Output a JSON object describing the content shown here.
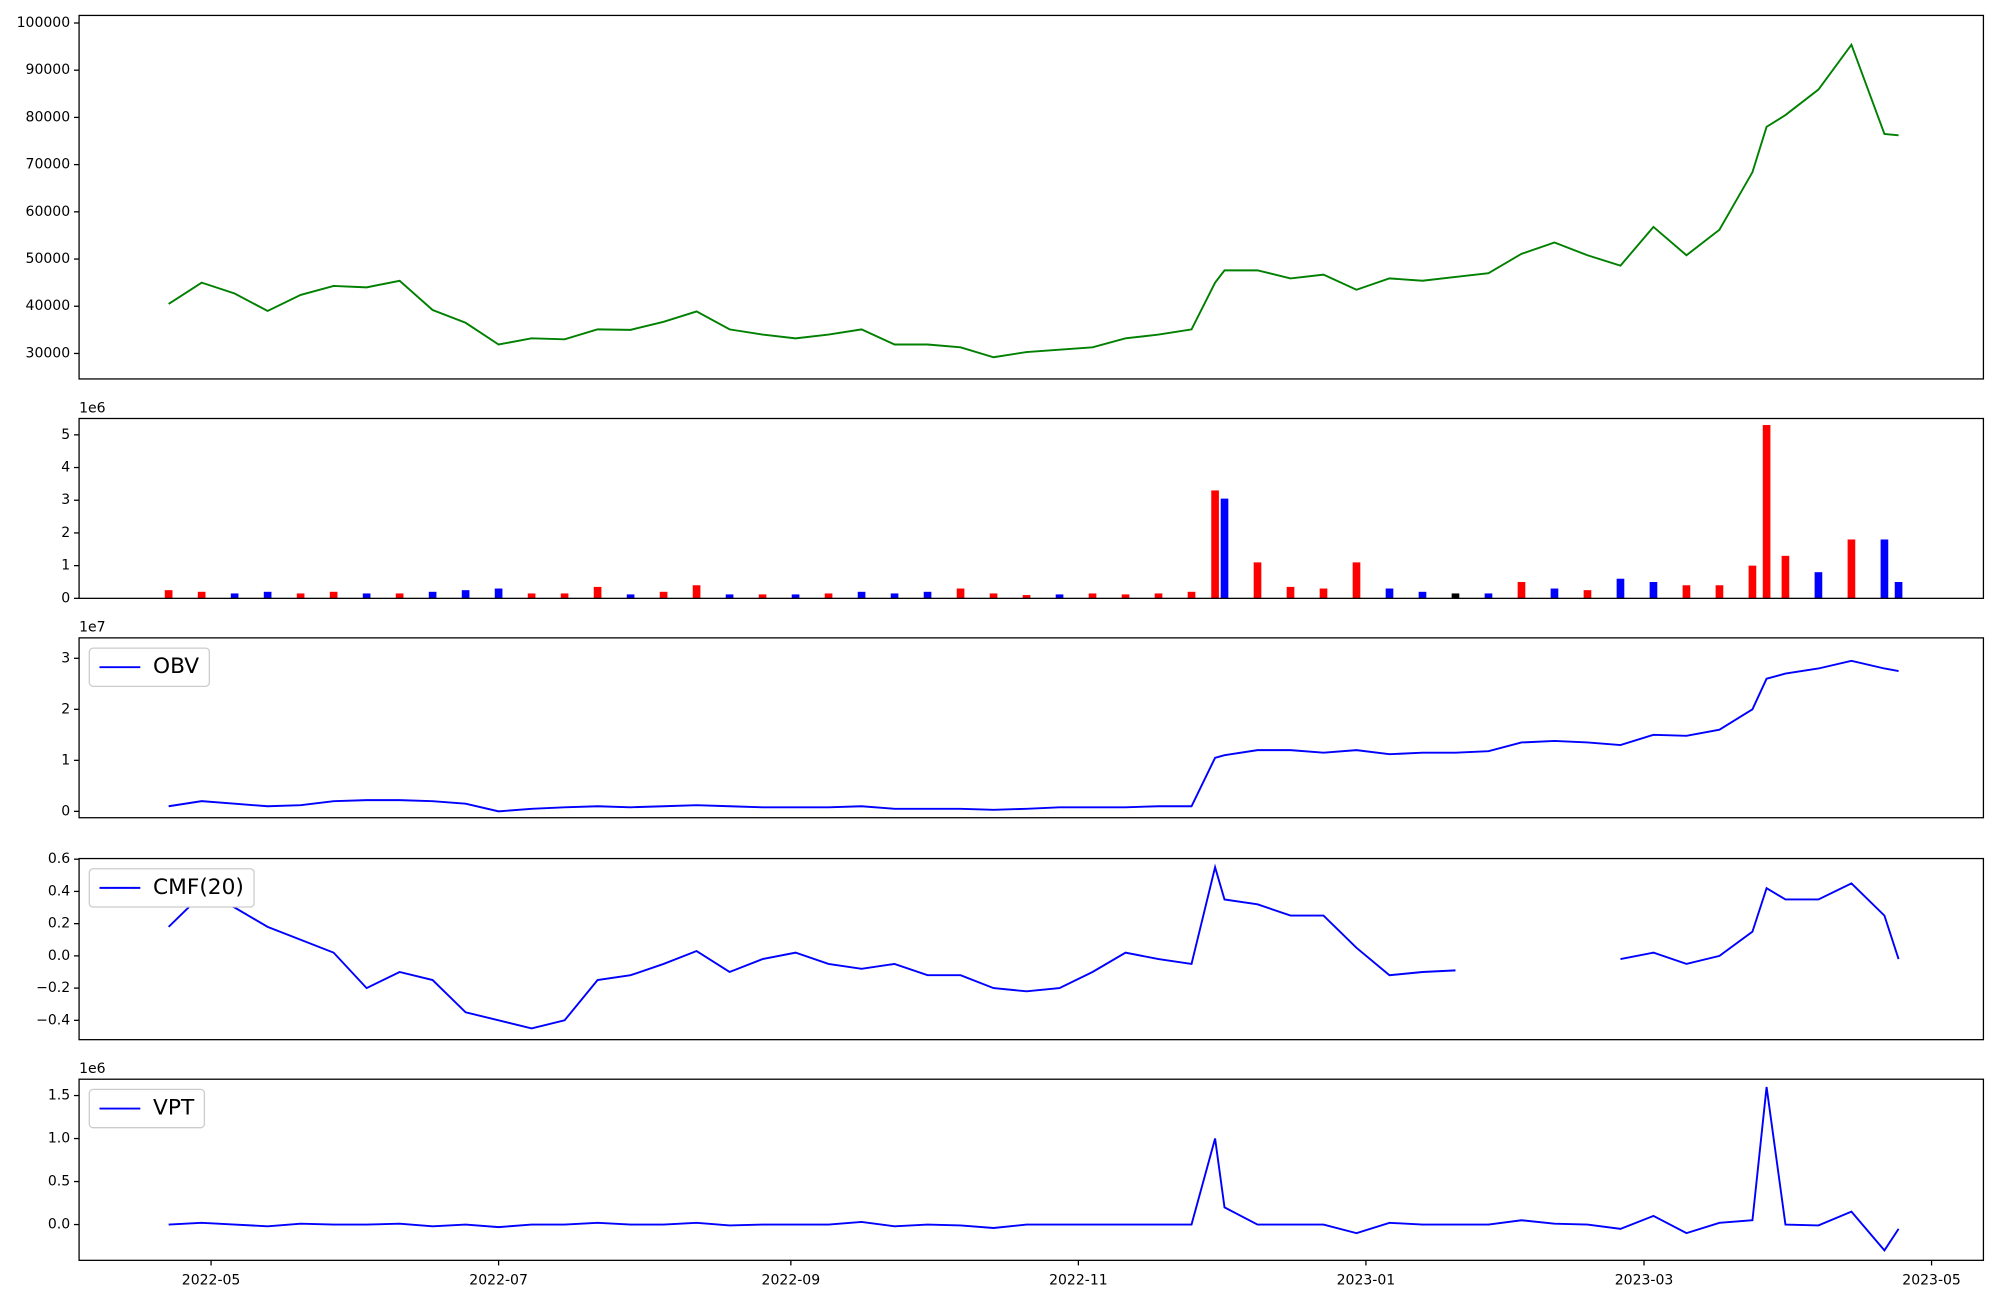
{
  "chart_data": [
    {
      "type": "line",
      "x": [
        "2022-04-22",
        "2022-04-29",
        "2022-05-06",
        "2022-05-13",
        "2022-05-20",
        "2022-05-27",
        "2022-06-03",
        "2022-06-10",
        "2022-06-17",
        "2022-06-24",
        "2022-07-01",
        "2022-07-08",
        "2022-07-15",
        "2022-07-22",
        "2022-07-29",
        "2022-08-05",
        "2022-08-12",
        "2022-08-19",
        "2022-08-26",
        "2022-09-02",
        "2022-09-09",
        "2022-09-16",
        "2022-09-23",
        "2022-09-30",
        "2022-10-07",
        "2022-10-14",
        "2022-10-21",
        "2022-10-28",
        "2022-11-04",
        "2022-11-11",
        "2022-11-18",
        "2022-11-25",
        "2022-11-30",
        "2022-12-02",
        "2022-12-09",
        "2022-12-16",
        "2022-12-23",
        "2022-12-30",
        "2023-01-06",
        "2023-01-13",
        "2023-01-20",
        "2023-01-27",
        "2023-02-03",
        "2023-02-10",
        "2023-02-17",
        "2023-02-24",
        "2023-03-03",
        "2023-03-10",
        "2023-03-17",
        "2023-03-24",
        "2023-03-27",
        "2023-03-31",
        "2023-04-07",
        "2023-04-14",
        "2023-04-21",
        "2023-04-24"
      ],
      "series": [
        {
          "color": "green",
          "values": [
            40500,
            45000,
            42700,
            39000,
            42400,
            44300,
            44000,
            45400,
            39200,
            36500,
            31900,
            33200,
            33000,
            35100,
            35000,
            36700,
            38900,
            35100,
            34000,
            33200,
            34000,
            35100,
            31900,
            31900,
            31300,
            29200,
            30300,
            30800,
            31300,
            33200,
            34000,
            35100,
            45000,
            47600,
            47600,
            45900,
            46700,
            43500,
            45900,
            45400,
            46200,
            47000,
            51100,
            53500,
            50800,
            48600,
            56800,
            50800,
            56200,
            68400,
            78000,
            80500,
            85900,
            95400,
            76500,
            76200
          ]
        }
      ],
      "xlim": [
        "2022-04-03",
        "2023-05-12"
      ],
      "ylim": [
        24600,
        101600
      ],
      "yticks": [
        30000,
        40000,
        50000,
        60000,
        70000,
        80000,
        90000,
        100000
      ]
    },
    {
      "type": "bar",
      "x": [
        "2022-04-22",
        "2022-04-29",
        "2022-05-06",
        "2022-05-13",
        "2022-05-20",
        "2022-05-27",
        "2022-06-03",
        "2022-06-10",
        "2022-06-17",
        "2022-06-24",
        "2022-07-01",
        "2022-07-08",
        "2022-07-15",
        "2022-07-22",
        "2022-07-29",
        "2022-08-05",
        "2022-08-12",
        "2022-08-19",
        "2022-08-26",
        "2022-09-02",
        "2022-09-09",
        "2022-09-16",
        "2022-09-23",
        "2022-09-30",
        "2022-10-07",
        "2022-10-14",
        "2022-10-21",
        "2022-10-28",
        "2022-11-04",
        "2022-11-11",
        "2022-11-18",
        "2022-11-25",
        "2022-11-30",
        "2022-12-02",
        "2022-12-09",
        "2022-12-16",
        "2022-12-23",
        "2022-12-30",
        "2023-01-06",
        "2023-01-13",
        "2023-01-20",
        "2023-01-27",
        "2023-02-03",
        "2023-02-10",
        "2023-02-17",
        "2023-02-24",
        "2023-03-03",
        "2023-03-10",
        "2023-03-17",
        "2023-03-24",
        "2023-03-27",
        "2023-03-31",
        "2023-04-07",
        "2023-04-14",
        "2023-04-21",
        "2023-04-24"
      ],
      "values": [
        250000,
        200000,
        150000,
        200000,
        150000,
        200000,
        150000,
        150000,
        200000,
        250000,
        300000,
        150000,
        150000,
        350000,
        120000,
        200000,
        400000,
        120000,
        120000,
        120000,
        150000,
        200000,
        150000,
        200000,
        300000,
        150000,
        100000,
        120000,
        150000,
        120000,
        150000,
        200000,
        3300000,
        3050000,
        1100000,
        350000,
        300000,
        1100000,
        300000,
        200000,
        150000,
        150000,
        500000,
        300000,
        250000,
        600000,
        500000,
        400000,
        400000,
        1000000,
        5300000,
        1300000,
        800000,
        1800000,
        1800000,
        500000
      ],
      "colors": [
        "red",
        "red",
        "blue",
        "blue",
        "red",
        "red",
        "blue",
        "red",
        "blue",
        "blue",
        "blue",
        "red",
        "red",
        "red",
        "blue",
        "red",
        "red",
        "blue",
        "red",
        "blue",
        "red",
        "blue",
        "blue",
        "blue",
        "red",
        "red",
        "red",
        "blue",
        "red",
        "red",
        "red",
        "red",
        "red",
        "blue",
        "red",
        "red",
        "red",
        "red",
        "blue",
        "blue",
        "black",
        "blue",
        "red",
        "blue",
        "red",
        "blue",
        "blue",
        "red",
        "red",
        "red",
        "red",
        "red",
        "blue",
        "red",
        "blue",
        "blue"
      ],
      "offset_label": "1e6",
      "xlim": [
        "2022-04-03",
        "2023-05-12"
      ],
      "ylim": [
        0,
        5500000
      ],
      "yticks": [
        0,
        {
          "value": 1000000,
          "label": "1"
        },
        {
          "value": 2000000,
          "label": "2"
        },
        {
          "value": 3000000,
          "label": "3"
        },
        {
          "value": 4000000,
          "label": "4"
        },
        {
          "value": 5000000,
          "label": "5"
        }
      ]
    },
    {
      "type": "line",
      "x": [
        "2022-04-22",
        "2022-04-29",
        "2022-05-06",
        "2022-05-13",
        "2022-05-20",
        "2022-05-27",
        "2022-06-03",
        "2022-06-10",
        "2022-06-17",
        "2022-06-24",
        "2022-07-01",
        "2022-07-08",
        "2022-07-15",
        "2022-07-22",
        "2022-07-29",
        "2022-08-05",
        "2022-08-12",
        "2022-08-19",
        "2022-08-26",
        "2022-09-02",
        "2022-09-09",
        "2022-09-16",
        "2022-09-23",
        "2022-09-30",
        "2022-10-07",
        "2022-10-14",
        "2022-10-21",
        "2022-10-28",
        "2022-11-04",
        "2022-11-11",
        "2022-11-18",
        "2022-11-25",
        "2022-11-30",
        "2022-12-02",
        "2022-12-09",
        "2022-12-16",
        "2022-12-23",
        "2022-12-30",
        "2023-01-06",
        "2023-01-13",
        "2023-01-20",
        "2023-01-27",
        "2023-02-03",
        "2023-02-10",
        "2023-02-17",
        "2023-02-24",
        "2023-03-03",
        "2023-03-10",
        "2023-03-17",
        "2023-03-24",
        "2023-03-27",
        "2023-03-31",
        "2023-04-07",
        "2023-04-14",
        "2023-04-21",
        "2023-04-24"
      ],
      "series": [
        {
          "name": "OBV",
          "color": "blue",
          "values": [
            1000000,
            2000000,
            1500000,
            1000000,
            1200000,
            2000000,
            2200000,
            2200000,
            2000000,
            1500000,
            0,
            500000,
            800000,
            1000000,
            800000,
            1000000,
            1200000,
            1000000,
            800000,
            800000,
            800000,
            1000000,
            500000,
            500000,
            500000,
            300000,
            500000,
            800000,
            800000,
            800000,
            1000000,
            1000000,
            10500000,
            11000000,
            12000000,
            12000000,
            11500000,
            12000000,
            11200000,
            11500000,
            11500000,
            11800000,
            13500000,
            13800000,
            13500000,
            13000000,
            15000000,
            14800000,
            16000000,
            20000000,
            26000000,
            27000000,
            28000000,
            29500000,
            28000000,
            27500000
          ]
        }
      ],
      "legend": "upper left",
      "offset_label": "1e7",
      "xlim": [
        "2022-04-03",
        "2023-05-12"
      ],
      "ylim": [
        -1250000,
        34000000
      ],
      "yticks": [
        0,
        {
          "value": 10000000,
          "label": "1"
        },
        {
          "value": 20000000,
          "label": "2"
        },
        {
          "value": 30000000,
          "label": "3"
        }
      ]
    },
    {
      "type": "line",
      "x": [
        "2022-04-22",
        "2022-04-29",
        "2022-05-06",
        "2022-05-13",
        "2022-05-20",
        "2022-05-27",
        "2022-06-03",
        "2022-06-10",
        "2022-06-17",
        "2022-06-24",
        "2022-07-01",
        "2022-07-08",
        "2022-07-15",
        "2022-07-22",
        "2022-07-29",
        "2022-08-05",
        "2022-08-12",
        "2022-08-19",
        "2022-08-26",
        "2022-09-02",
        "2022-09-09",
        "2022-09-16",
        "2022-09-23",
        "2022-09-30",
        "2022-10-07",
        "2022-10-14",
        "2022-10-21",
        "2022-10-28",
        "2022-11-04",
        "2022-11-11",
        "2022-11-18",
        "2022-11-25",
        "2022-11-30",
        "2022-12-02",
        "2022-12-09",
        "2022-12-16",
        "2022-12-23",
        "2022-12-30",
        "2023-01-06",
        "2023-01-13",
        "2023-01-20",
        "2023-01-27",
        "2023-02-03",
        "2023-02-10",
        "2023-02-17",
        "2023-02-24",
        "2023-03-03",
        "2023-03-10",
        "2023-03-17",
        "2023-03-24",
        "2023-03-27",
        "2023-03-31",
        "2023-04-07",
        "2023-04-14",
        "2023-04-21",
        "2023-04-24"
      ],
      "series": [
        {
          "name": "CMF(20)",
          "color": "blue",
          "values": [
            0.18,
            0.38,
            0.3,
            0.18,
            0.1,
            0.02,
            -0.2,
            -0.1,
            -0.15,
            -0.35,
            -0.4,
            -0.45,
            -0.4,
            -0.15,
            -0.12,
            -0.05,
            0.03,
            -0.1,
            -0.02,
            0.02,
            -0.05,
            -0.08,
            -0.05,
            -0.12,
            -0.12,
            -0.2,
            -0.22,
            -0.2,
            -0.1,
            0.02,
            -0.02,
            -0.05,
            0.55,
            0.35,
            0.32,
            0.25,
            0.25,
            0.05,
            -0.12,
            -0.1,
            -0.09,
            null,
            null,
            null,
            null,
            -0.02,
            0.02,
            -0.05,
            0.0,
            0.15,
            0.42,
            0.35,
            0.35,
            0.45,
            0.25,
            -0.02
          ]
        }
      ],
      "legend": "upper left",
      "xlim": [
        "2022-04-03",
        "2023-05-12"
      ],
      "ylim": [
        -0.52,
        0.604
      ],
      "yticks": [
        {
          "value": -0.4,
          "label": "−0.4"
        },
        {
          "value": -0.2,
          "label": "−0.2"
        },
        {
          "value": 0,
          "label": "0.0"
        },
        0.2,
        0.4,
        0.6
      ]
    },
    {
      "type": "line",
      "x": [
        "2022-04-22",
        "2022-04-29",
        "2022-05-06",
        "2022-05-13",
        "2022-05-20",
        "2022-05-27",
        "2022-06-03",
        "2022-06-10",
        "2022-06-17",
        "2022-06-24",
        "2022-07-01",
        "2022-07-08",
        "2022-07-15",
        "2022-07-22",
        "2022-07-29",
        "2022-08-05",
        "2022-08-12",
        "2022-08-19",
        "2022-08-26",
        "2022-09-02",
        "2022-09-09",
        "2022-09-16",
        "2022-09-23",
        "2022-09-30",
        "2022-10-07",
        "2022-10-14",
        "2022-10-21",
        "2022-10-28",
        "2022-11-04",
        "2022-11-11",
        "2022-11-18",
        "2022-11-25",
        "2022-11-30",
        "2022-12-02",
        "2022-12-09",
        "2022-12-16",
        "2022-12-23",
        "2022-12-30",
        "2023-01-06",
        "2023-01-13",
        "2023-01-20",
        "2023-01-27",
        "2023-02-03",
        "2023-02-10",
        "2023-02-17",
        "2023-02-24",
        "2023-03-03",
        "2023-03-10",
        "2023-03-17",
        "2023-03-24",
        "2023-03-27",
        "2023-03-31",
        "2023-04-07",
        "2023-04-14",
        "2023-04-21",
        "2023-04-24"
      ],
      "series": [
        {
          "name": "VPT",
          "color": "blue",
          "values": [
            0,
            20000,
            0,
            -20000,
            10000,
            0,
            0,
            10000,
            -20000,
            0,
            -30000,
            0,
            0,
            20000,
            0,
            0,
            20000,
            -10000,
            0,
            0,
            0,
            30000,
            -20000,
            0,
            -10000,
            -40000,
            0,
            0,
            0,
            0,
            0,
            0,
            1000000,
            200000,
            0,
            0,
            0,
            -100000,
            20000,
            0,
            0,
            0,
            50000,
            10000,
            0,
            -50000,
            100000,
            -100000,
            20000,
            50000,
            1600000,
            0,
            -10000,
            150000,
            -300000,
            -50000
          ]
        }
      ],
      "legend": "upper left",
      "offset_label": "1e6",
      "xlim": [
        "2022-04-03",
        "2023-05-12"
      ],
      "ylim": [
        -416000,
        1690000
      ],
      "yticks": [
        {
          "value": 0,
          "label": "0.0"
        },
        {
          "value": 500000,
          "label": "0.5"
        },
        {
          "value": 1000000,
          "label": "1.0"
        },
        {
          "value": 1500000,
          "label": "1.5"
        }
      ],
      "xticks": [
        "2022-05",
        "2022-07",
        "2022-09",
        "2022-11",
        "2023-01",
        "2023-03",
        "2023-05"
      ]
    }
  ]
}
